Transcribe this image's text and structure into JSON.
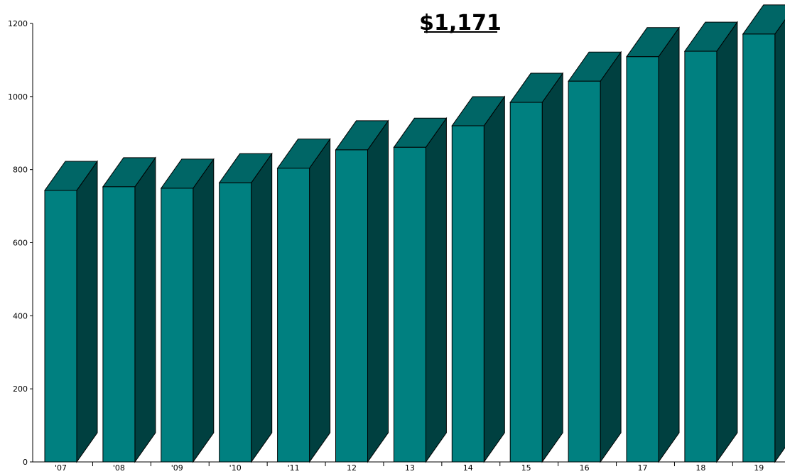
{
  "chart_data": {
    "type": "bar",
    "title": "",
    "xlabel": "",
    "ylabel": "",
    "annotation": "$1,171",
    "categories": [
      "'07",
      "'08",
      "'09",
      "'10",
      "'11",
      "12",
      "13",
      "14",
      "15",
      "16",
      "17",
      "18",
      "19"
    ],
    "values": [
      743,
      753,
      749,
      764,
      804,
      854,
      861,
      920,
      984,
      1042,
      1109,
      1124,
      1171
    ],
    "ylim": [
      0,
      1200
    ],
    "yticks": [
      0,
      200,
      400,
      600,
      800,
      1000,
      1200
    ],
    "grid": false,
    "legend": "none",
    "colors": {
      "front": "#008080",
      "top": "#006666",
      "side": "#004040",
      "edge": "#000000"
    }
  }
}
